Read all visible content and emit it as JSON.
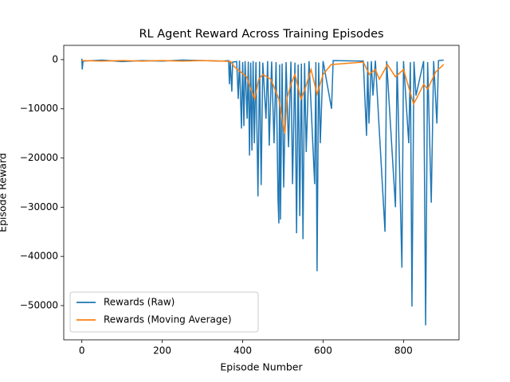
{
  "chart_data": {
    "type": "line",
    "title": "RL Agent Reward Across Training Episodes",
    "x_label": "Episode Number",
    "y_label": "Episode Reward",
    "xlim": [
      -45,
      938
    ],
    "ylim": [
      -56960,
      2900
    ],
    "xticks": [
      0,
      200,
      400,
      600,
      800
    ],
    "yticks": [
      {
        "value": -50000,
        "label": "−50000"
      },
      {
        "value": -40000,
        "label": "−40000"
      },
      {
        "value": -30000,
        "label": "−30000"
      },
      {
        "value": -20000,
        "label": "−20000"
      },
      {
        "value": -10000,
        "label": "−10000"
      },
      0
    ],
    "grid": false,
    "legend": "lower left",
    "series": [
      {
        "name": "Rewards (Raw)",
        "color": "#1f77b4",
        "x": [
          0,
          1,
          3,
          50,
          100,
          150,
          200,
          250,
          300,
          350,
          365,
          367,
          369,
          373,
          375,
          385,
          389,
          392,
          397,
          400,
          403,
          406,
          411,
          414,
          417,
          420,
          423,
          426,
          429,
          433,
          438,
          442,
          446,
          450,
          458,
          462,
          466,
          472,
          478,
          483,
          488,
          490,
          492,
          494,
          498,
          502,
          508,
          514,
          520,
          524,
          530,
          534,
          538,
          542,
          546,
          550,
          554,
          558,
          565,
          579,
          582,
          585,
          589,
          593,
          600,
          621,
          625,
          700,
          708,
          711,
          714,
          720,
          724,
          730,
          754,
          758,
          780,
          784,
          796,
          800,
          813,
          817,
          821,
          826,
          831,
          850,
          855,
          860,
          869,
          875,
          883,
          887,
          900
        ],
        "values": [
          200,
          -2000,
          -300,
          -100,
          -400,
          -200,
          -300,
          -100,
          -200,
          -300,
          -200,
          -5000,
          -300,
          -6500,
          -500,
          -400,
          -8000,
          -200,
          -14000,
          -500,
          -13500,
          -300,
          -12000,
          -400,
          -19500,
          -600,
          -18500,
          -300,
          -17000,
          -500,
          -27800,
          -400,
          -25500,
          -600,
          -12000,
          -300,
          -17500,
          -400,
          -17000,
          -500,
          -28800,
          -33300,
          -1000,
          -32500,
          -800,
          -26000,
          -500,
          -17800,
          -400,
          -25300,
          -600,
          -35300,
          -1000,
          -31800,
          -800,
          -36500,
          -700,
          -18800,
          -300,
          -25300,
          -500,
          -43000,
          -600,
          -17000,
          -300,
          -10000,
          -200,
          -300,
          -15500,
          -400,
          -13000,
          -300,
          -7300,
          -200,
          -35000,
          -300,
          -30000,
          -400,
          -42300,
          -300,
          -17000,
          -500,
          -50200,
          -400,
          -7300,
          -300,
          -54000,
          -500,
          -29100,
          -300,
          -13000,
          -200,
          -100
        ]
      },
      {
        "name": "Rewards (Moving Average)",
        "color": "#ff7f0e",
        "x": [
          0,
          50,
          100,
          150,
          200,
          250,
          300,
          350,
          370,
          380,
          395,
          410,
          420,
          430,
          440,
          450,
          470,
          490,
          500,
          505,
          510,
          520,
          530,
          545,
          555,
          570,
          585,
          600,
          620,
          700,
          715,
          730,
          740,
          760,
          780,
          800,
          825,
          835,
          850,
          860,
          880,
          900
        ],
        "values": [
          -200,
          -300,
          -200,
          -300,
          -200,
          -300,
          -200,
          -300,
          -400,
          -1500,
          -2500,
          -3500,
          -6000,
          -8000,
          -4000,
          -3000,
          -4000,
          -8000,
          -13000,
          -15000,
          -8000,
          -5000,
          -3000,
          -8000,
          -6000,
          -2000,
          -7000,
          -3000,
          -1000,
          -500,
          -3000,
          -2000,
          -4000,
          -1000,
          -3500,
          -2000,
          -9000,
          -7500,
          -5000,
          -6000,
          -2500,
          -1000
        ]
      }
    ]
  }
}
